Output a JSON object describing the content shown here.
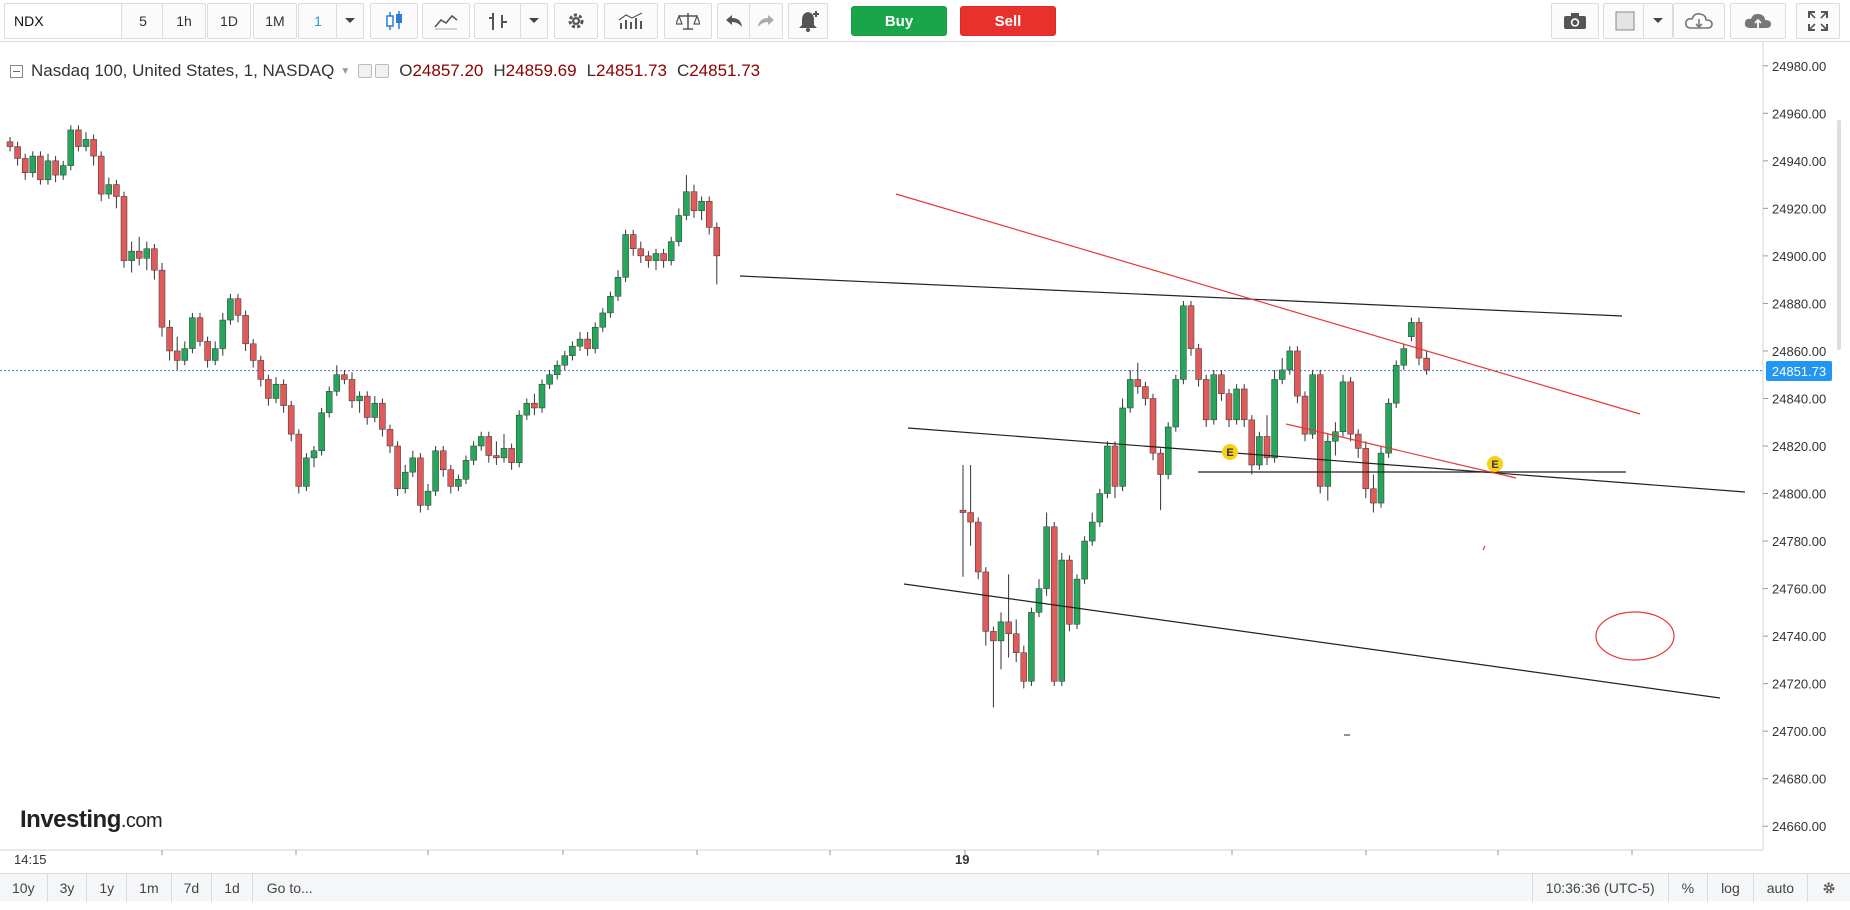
{
  "toolbar": {
    "symbol": "NDX",
    "timeframes": [
      {
        "label": "5",
        "active": false
      },
      {
        "label": "1h",
        "active": false
      },
      {
        "label": "1D",
        "active": false
      },
      {
        "label": "1M",
        "active": false
      },
      {
        "label": "1",
        "active": true
      }
    ],
    "buy_label": "Buy",
    "sell_label": "Sell",
    "icons": [
      "chevron-down-icon",
      "candlestick-icon",
      "line-chart-icon",
      "bar-style-icon",
      "chevron-down-icon",
      "gear-icon",
      "indicators-icon",
      "compare-icon",
      "undo-icon",
      "redo-icon",
      "alert-bell-icon",
      "camera-icon",
      "fill-box-icon",
      "chevron-down-icon",
      "cloud-download-icon",
      "cloud-upload-icon",
      "fullscreen-icon"
    ]
  },
  "legend": {
    "instrument": "Nasdaq 100, United States, 1, NASDAQ",
    "open_key": "O",
    "open": "24857.20",
    "high_key": "H",
    "high": "24859.69",
    "low_key": "L",
    "low": "24851.73",
    "close_key": "C",
    "close": "24851.73"
  },
  "price_tag": "24851.73",
  "logo": {
    "brand": "Investing",
    "suffix": ".com"
  },
  "chart_data": {
    "type": "candlestick",
    "ylim": [
      24650,
      24990
    ],
    "y_ticks": [
      "24980.00",
      "24960.00",
      "24940.00",
      "24920.00",
      "24900.00",
      "24880.00",
      "24860.00",
      "24840.00",
      "24820.00",
      "24800.00",
      "24780.00",
      "24760.00",
      "24740.00",
      "24720.00",
      "24700.00",
      "24680.00",
      "24660.00"
    ],
    "x_labels": [
      "14:15",
      "19"
    ],
    "current_price": 24851.73,
    "colors": {
      "up": "#26a65b",
      "down": "#e05a5a",
      "trendline_black": "#222222",
      "trendline_red": "#e53935",
      "price_line": "#4a72d9"
    },
    "event_markers": [
      {
        "label": "E"
      },
      {
        "label": "E"
      }
    ],
    "candles": [
      {
        "o": 24948,
        "h": 24950,
        "l": 24944,
        "c": 24946
      },
      {
        "o": 24946,
        "h": 24948,
        "l": 24938,
        "c": 24941
      },
      {
        "o": 24941,
        "h": 24943,
        "l": 24932,
        "c": 24935
      },
      {
        "o": 24935,
        "h": 24944,
        "l": 24933,
        "c": 24942
      },
      {
        "o": 24942,
        "h": 24944,
        "l": 24930,
        "c": 24932
      },
      {
        "o": 24932,
        "h": 24943,
        "l": 24930,
        "c": 24940
      },
      {
        "o": 24940,
        "h": 24942,
        "l": 24931,
        "c": 24934
      },
      {
        "o": 24934,
        "h": 24940,
        "l": 24932,
        "c": 24938
      },
      {
        "o": 24938,
        "h": 24955,
        "l": 24936,
        "c": 24953
      },
      {
        "o": 24953,
        "h": 24955,
        "l": 24944,
        "c": 24946
      },
      {
        "o": 24946,
        "h": 24952,
        "l": 24944,
        "c": 24949
      },
      {
        "o": 24949,
        "h": 24951,
        "l": 24938,
        "c": 24942
      },
      {
        "o": 24942,
        "h": 24944,
        "l": 24923,
        "c": 24926
      },
      {
        "o": 24926,
        "h": 24933,
        "l": 24924,
        "c": 24930
      },
      {
        "o": 24930,
        "h": 24932,
        "l": 24920,
        "c": 24925
      },
      {
        "o": 24925,
        "h": 24927,
        "l": 24895,
        "c": 24898
      },
      {
        "o": 24898,
        "h": 24906,
        "l": 24893,
        "c": 24902
      },
      {
        "o": 24902,
        "h": 24908,
        "l": 24896,
        "c": 24899
      },
      {
        "o": 24899,
        "h": 24906,
        "l": 24894,
        "c": 24903
      },
      {
        "o": 24903,
        "h": 24905,
        "l": 24890,
        "c": 24894
      },
      {
        "o": 24894,
        "h": 24897,
        "l": 24866,
        "c": 24870
      },
      {
        "o": 24870,
        "h": 24873,
        "l": 24856,
        "c": 24860
      },
      {
        "o": 24860,
        "h": 24866,
        "l": 24852,
        "c": 24856
      },
      {
        "o": 24856,
        "h": 24864,
        "l": 24854,
        "c": 24861
      },
      {
        "o": 24861,
        "h": 24876,
        "l": 24859,
        "c": 24874
      },
      {
        "o": 24874,
        "h": 24876,
        "l": 24862,
        "c": 24864
      },
      {
        "o": 24864,
        "h": 24866,
        "l": 24853,
        "c": 24856
      },
      {
        "o": 24856,
        "h": 24864,
        "l": 24854,
        "c": 24861
      },
      {
        "o": 24861,
        "h": 24876,
        "l": 24858,
        "c": 24873
      },
      {
        "o": 24873,
        "h": 24884,
        "l": 24871,
        "c": 24882
      },
      {
        "o": 24882,
        "h": 24884,
        "l": 24872,
        "c": 24875
      },
      {
        "o": 24875,
        "h": 24877,
        "l": 24860,
        "c": 24863
      },
      {
        "o": 24863,
        "h": 24865,
        "l": 24853,
        "c": 24856
      },
      {
        "o": 24856,
        "h": 24858,
        "l": 24845,
        "c": 24848
      },
      {
        "o": 24848,
        "h": 24850,
        "l": 24837,
        "c": 24840
      },
      {
        "o": 24840,
        "h": 24849,
        "l": 24838,
        "c": 24846
      },
      {
        "o": 24846,
        "h": 24848,
        "l": 24834,
        "c": 24837
      },
      {
        "o": 24837,
        "h": 24839,
        "l": 24822,
        "c": 24825
      },
      {
        "o": 24825,
        "h": 24827,
        "l": 24800,
        "c": 24803
      },
      {
        "o": 24803,
        "h": 24817,
        "l": 24801,
        "c": 24815
      },
      {
        "o": 24815,
        "h": 24820,
        "l": 24811,
        "c": 24818
      },
      {
        "o": 24818,
        "h": 24836,
        "l": 24816,
        "c": 24834
      },
      {
        "o": 24834,
        "h": 24845,
        "l": 24832,
        "c": 24843
      },
      {
        "o": 24843,
        "h": 24854,
        "l": 24841,
        "c": 24850
      },
      {
        "o": 24850,
        "h": 24852,
        "l": 24846,
        "c": 24848
      },
      {
        "o": 24848,
        "h": 24851,
        "l": 24836,
        "c": 24839
      },
      {
        "o": 24839,
        "h": 24843,
        "l": 24834,
        "c": 24841
      },
      {
        "o": 24841,
        "h": 24843,
        "l": 24829,
        "c": 24832
      },
      {
        "o": 24832,
        "h": 24841,
        "l": 24830,
        "c": 24838
      },
      {
        "o": 24838,
        "h": 24840,
        "l": 24824,
        "c": 24827
      },
      {
        "o": 24827,
        "h": 24829,
        "l": 24817,
        "c": 24820
      },
      {
        "o": 24820,
        "h": 24822,
        "l": 24799,
        "c": 24802
      },
      {
        "o": 24802,
        "h": 24812,
        "l": 24800,
        "c": 24809
      },
      {
        "o": 24809,
        "h": 24818,
        "l": 24807,
        "c": 24815
      },
      {
        "o": 24815,
        "h": 24817,
        "l": 24792,
        "c": 24795
      },
      {
        "o": 24795,
        "h": 24804,
        "l": 24793,
        "c": 24801
      },
      {
        "o": 24801,
        "h": 24820,
        "l": 24799,
        "c": 24818
      },
      {
        "o": 24818,
        "h": 24820,
        "l": 24807,
        "c": 24810
      },
      {
        "o": 24810,
        "h": 24812,
        "l": 24800,
        "c": 24803
      },
      {
        "o": 24803,
        "h": 24808,
        "l": 24801,
        "c": 24806
      },
      {
        "o": 24806,
        "h": 24816,
        "l": 24804,
        "c": 24814
      },
      {
        "o": 24814,
        "h": 24822,
        "l": 24812,
        "c": 24820
      },
      {
        "o": 24820,
        "h": 24826,
        "l": 24818,
        "c": 24824
      },
      {
        "o": 24824,
        "h": 24826,
        "l": 24813,
        "c": 24816
      },
      {
        "o": 24816,
        "h": 24822,
        "l": 24812,
        "c": 24815
      },
      {
        "o": 24815,
        "h": 24825,
        "l": 24813,
        "c": 24819
      },
      {
        "o": 24819,
        "h": 24821,
        "l": 24810,
        "c": 24813
      },
      {
        "o": 24813,
        "h": 24835,
        "l": 24811,
        "c": 24833
      },
      {
        "o": 24833,
        "h": 24840,
        "l": 24831,
        "c": 24838
      },
      {
        "o": 24838,
        "h": 24842,
        "l": 24833,
        "c": 24836
      },
      {
        "o": 24836,
        "h": 24848,
        "l": 24834,
        "c": 24846
      },
      {
        "o": 24846,
        "h": 24852,
        "l": 24844,
        "c": 24850
      },
      {
        "o": 24850,
        "h": 24856,
        "l": 24848,
        "c": 24854
      },
      {
        "o": 24854,
        "h": 24860,
        "l": 24852,
        "c": 24858
      },
      {
        "o": 24858,
        "h": 24864,
        "l": 24856,
        "c": 24862
      },
      {
        "o": 24862,
        "h": 24868,
        "l": 24860,
        "c": 24865
      },
      {
        "o": 24865,
        "h": 24868,
        "l": 24858,
        "c": 24861
      },
      {
        "o": 24861,
        "h": 24872,
        "l": 24859,
        "c": 24870
      },
      {
        "o": 24870,
        "h": 24878,
        "l": 24868,
        "c": 24876
      },
      {
        "o": 24876,
        "h": 24885,
        "l": 24874,
        "c": 24883
      },
      {
        "o": 24883,
        "h": 24894,
        "l": 24881,
        "c": 24891
      },
      {
        "o": 24891,
        "h": 24911,
        "l": 24889,
        "c": 24909
      },
      {
        "o": 24909,
        "h": 24911,
        "l": 24900,
        "c": 24903
      },
      {
        "o": 24903,
        "h": 24906,
        "l": 24897,
        "c": 24900
      },
      {
        "o": 24900,
        "h": 24902,
        "l": 24895,
        "c": 24898
      },
      {
        "o": 24898,
        "h": 24903,
        "l": 24894,
        "c": 24901
      },
      {
        "o": 24901,
        "h": 24903,
        "l": 24895,
        "c": 24898
      },
      {
        "o": 24898,
        "h": 24908,
        "l": 24896,
        "c": 24906
      },
      {
        "o": 24906,
        "h": 24920,
        "l": 24904,
        "c": 24917
      },
      {
        "o": 24917,
        "h": 24934,
        "l": 24915,
        "c": 24927
      },
      {
        "o": 24927,
        "h": 24930,
        "l": 24916,
        "c": 24919
      },
      {
        "o": 24919,
        "h": 24925,
        "l": 24915,
        "c": 24923
      },
      {
        "o": 24923,
        "h": 24925,
        "l": 24909,
        "c": 24912
      },
      {
        "o": 24912,
        "h": 24914,
        "l": 24888,
        "c": 24900
      },
      {
        "o": 24793,
        "h": 24812,
        "l": 24765,
        "c": 24792
      },
      {
        "o": 24792,
        "h": 24812,
        "l": 24778,
        "c": 24788
      },
      {
        "o": 24788,
        "h": 24790,
        "l": 24764,
        "c": 24767
      },
      {
        "o": 24767,
        "h": 24769,
        "l": 24736,
        "c": 24742
      },
      {
        "o": 24742,
        "h": 24744,
        "l": 24710,
        "c": 24738
      },
      {
        "o": 24738,
        "h": 24750,
        "l": 24726,
        "c": 24746
      },
      {
        "o": 24746,
        "h": 24766,
        "l": 24731,
        "c": 24741
      },
      {
        "o": 24741,
        "h": 24747,
        "l": 24729,
        "c": 24733
      },
      {
        "o": 24733,
        "h": 24736,
        "l": 24718,
        "c": 24721
      },
      {
        "o": 24721,
        "h": 24752,
        "l": 24719,
        "c": 24750
      },
      {
        "o": 24750,
        "h": 24764,
        "l": 24748,
        "c": 24760
      },
      {
        "o": 24760,
        "h": 24792,
        "l": 24757,
        "c": 24786
      },
      {
        "o": 24786,
        "h": 24788,
        "l": 24719,
        "c": 24721
      },
      {
        "o": 24721,
        "h": 24775,
        "l": 24719,
        "c": 24772
      },
      {
        "o": 24772,
        "h": 24774,
        "l": 24742,
        "c": 24745
      },
      {
        "o": 24745,
        "h": 24766,
        "l": 24743,
        "c": 24764
      },
      {
        "o": 24764,
        "h": 24782,
        "l": 24762,
        "c": 24780
      },
      {
        "o": 24780,
        "h": 24792,
        "l": 24778,
        "c": 24788
      },
      {
        "o": 24788,
        "h": 24802,
        "l": 24786,
        "c": 24800
      },
      {
        "o": 24800,
        "h": 24822,
        "l": 24798,
        "c": 24820
      },
      {
        "o": 24820,
        "h": 24822,
        "l": 24798,
        "c": 24803
      },
      {
        "o": 24803,
        "h": 24840,
        "l": 24801,
        "c": 24836
      },
      {
        "o": 24836,
        "h": 24852,
        "l": 24834,
        "c": 24848
      },
      {
        "o": 24848,
        "h": 24855,
        "l": 24842,
        "c": 24845
      },
      {
        "o": 24845,
        "h": 24847,
        "l": 24837,
        "c": 24840
      },
      {
        "o": 24840,
        "h": 24842,
        "l": 24814,
        "c": 24817
      },
      {
        "o": 24817,
        "h": 24819,
        "l": 24793,
        "c": 24808
      },
      {
        "o": 24808,
        "h": 24830,
        "l": 24806,
        "c": 24828
      },
      {
        "o": 24828,
        "h": 24850,
        "l": 24826,
        "c": 24848
      },
      {
        "o": 24848,
        "h": 24881,
        "l": 24846,
        "c": 24879
      },
      {
        "o": 24879,
        "h": 24881,
        "l": 24858,
        "c": 24861
      },
      {
        "o": 24861,
        "h": 24863,
        "l": 24845,
        "c": 24848
      },
      {
        "o": 24848,
        "h": 24850,
        "l": 24828,
        "c": 24831
      },
      {
        "o": 24831,
        "h": 24852,
        "l": 24829,
        "c": 24850
      },
      {
        "o": 24850,
        "h": 24852,
        "l": 24839,
        "c": 24842
      },
      {
        "o": 24842,
        "h": 24844,
        "l": 24828,
        "c": 24831
      },
      {
        "o": 24831,
        "h": 24846,
        "l": 24829,
        "c": 24844
      },
      {
        "o": 24844,
        "h": 24846,
        "l": 24828,
        "c": 24831
      },
      {
        "o": 24831,
        "h": 24833,
        "l": 24808,
        "c": 24812
      },
      {
        "o": 24812,
        "h": 24826,
        "l": 24810,
        "c": 24824
      },
      {
        "o": 24824,
        "h": 24833,
        "l": 24812,
        "c": 24815
      },
      {
        "o": 24815,
        "h": 24852,
        "l": 24813,
        "c": 24848
      },
      {
        "o": 24848,
        "h": 24857,
        "l": 24846,
        "c": 24852
      },
      {
        "o": 24852,
        "h": 24862,
        "l": 24850,
        "c": 24860
      },
      {
        "o": 24860,
        "h": 24862,
        "l": 24838,
        "c": 24841
      },
      {
        "o": 24841,
        "h": 24843,
        "l": 24822,
        "c": 24825
      },
      {
        "o": 24825,
        "h": 24852,
        "l": 24823,
        "c": 24850
      },
      {
        "o": 24850,
        "h": 24852,
        "l": 24800,
        "c": 24803
      },
      {
        "o": 24803,
        "h": 24825,
        "l": 24797,
        "c": 24822
      },
      {
        "o": 24822,
        "h": 24830,
        "l": 24816,
        "c": 24826
      },
      {
        "o": 24826,
        "h": 24850,
        "l": 24824,
        "c": 24847
      },
      {
        "o": 24847,
        "h": 24849,
        "l": 24822,
        "c": 24825
      },
      {
        "o": 24825,
        "h": 24827,
        "l": 24815,
        "c": 24819
      },
      {
        "o": 24819,
        "h": 24822,
        "l": 24798,
        "c": 24802
      },
      {
        "o": 24802,
        "h": 24808,
        "l": 24792,
        "c": 24796
      },
      {
        "o": 24796,
        "h": 24820,
        "l": 24794,
        "c": 24817
      },
      {
        "o": 24817,
        "h": 24840,
        "l": 24815,
        "c": 24838
      },
      {
        "o": 24838,
        "h": 24856,
        "l": 24836,
        "c": 24854
      },
      {
        "o": 24854,
        "h": 24863,
        "l": 24852,
        "c": 24861
      },
      {
        "o": 24866,
        "h": 24874,
        "l": 24864,
        "c": 24872
      },
      {
        "o": 24872,
        "h": 24874,
        "l": 24854,
        "c": 24857
      },
      {
        "o": 24857,
        "h": 24860,
        "l": 24850,
        "c": 24852
      }
    ]
  },
  "bottom_bar": {
    "ranges": [
      "10y",
      "3y",
      "1y",
      "1m",
      "7d",
      "1d"
    ],
    "goto": "Go to...",
    "clock": "10:36:36 (UTC-5)",
    "percent": "%",
    "log": "log",
    "auto": "auto"
  }
}
